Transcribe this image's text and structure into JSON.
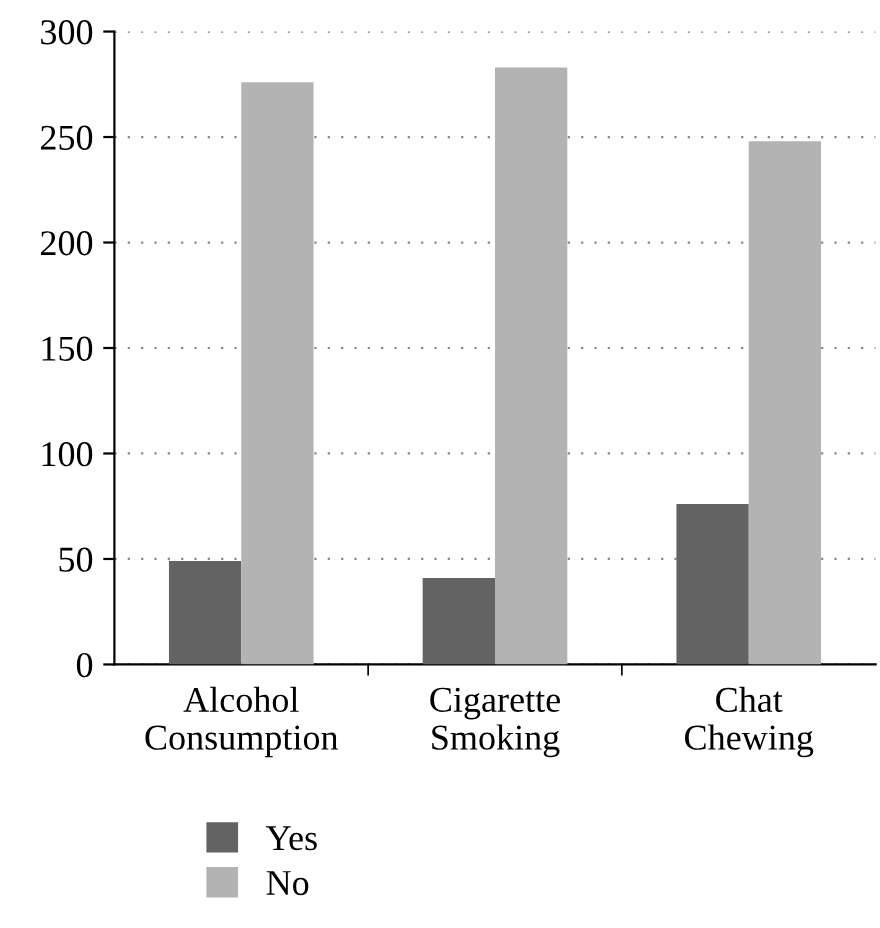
{
  "chart_data": {
    "type": "bar",
    "categories": [
      "Alcohol\nConsumption",
      "Cigarette\nSmoking",
      "Chat\nChewing"
    ],
    "series": [
      {
        "name": "Yes",
        "color": "#636363",
        "values": [
          49,
          41,
          76
        ]
      },
      {
        "name": "No",
        "color": "#b3b3b3",
        "values": [
          276,
          283,
          248
        ]
      }
    ],
    "ylim": [
      0,
      300
    ],
    "yticks": [
      0,
      50,
      100,
      150,
      200,
      250,
      300
    ],
    "grid": "y",
    "legend": "bottom left"
  }
}
